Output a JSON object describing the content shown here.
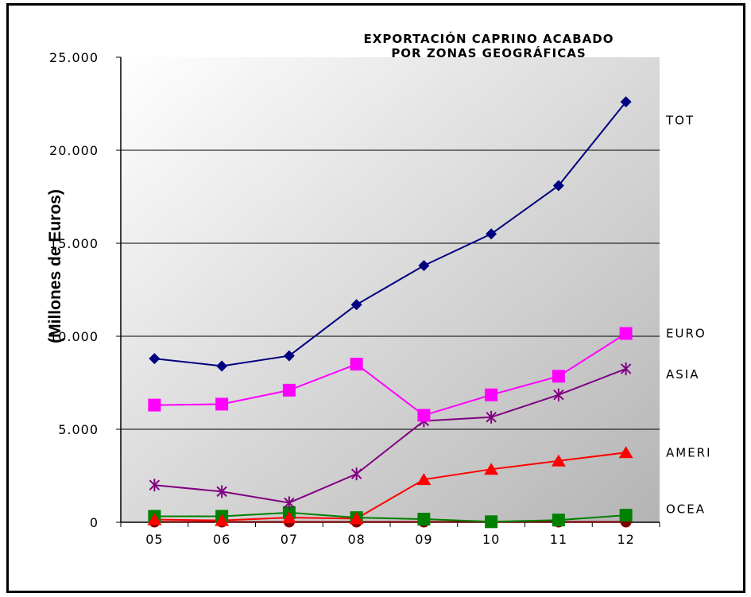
{
  "chart_data": {
    "type": "line",
    "title_line1": "EXPORTACIÓN CAPRINO ACABADO",
    "title_line2": "POR ZONAS GEOGRÁFICAS",
    "ylabel": "(Millones de Euros)",
    "xlabel": "",
    "categories": [
      "05",
      "06",
      "07",
      "08",
      "09",
      "10",
      "11",
      "12"
    ],
    "ylim": [
      0,
      25000
    ],
    "yticks": [
      {
        "value": 0,
        "label": "0"
      },
      {
        "value": 5000,
        "label": "5.000"
      },
      {
        "value": 10000,
        "label": "10.000"
      },
      {
        "value": 15000,
        "label": "15.000"
      },
      {
        "value": 20000,
        "label": "20.000"
      },
      {
        "value": 25000,
        "label": "25.000"
      }
    ],
    "grid": true,
    "series": [
      {
        "name": "TOT",
        "color": "#000080",
        "marker": "diamond",
        "values": [
          8800,
          8400,
          8950,
          11700,
          13800,
          15500,
          18100,
          22600
        ]
      },
      {
        "name": "EURO",
        "color": "#FF00FF",
        "marker": "square",
        "values": [
          6300,
          6350,
          7100,
          8500,
          5750,
          6850,
          7850,
          10150
        ]
      },
      {
        "name": "ASIA",
        "color": "#800080",
        "marker": "star",
        "values": [
          2000,
          1650,
          1050,
          2600,
          5450,
          5650,
          6850,
          8250
        ]
      },
      {
        "name": "AMERI",
        "color": "#FF0000",
        "marker": "triangle",
        "values": [
          150,
          100,
          250,
          200,
          2300,
          2850,
          3300,
          3750
        ]
      },
      {
        "name": "OCEA",
        "color": "#008000",
        "marker": "square",
        "values": [
          320,
          320,
          520,
          250,
          170,
          30,
          120,
          380
        ]
      },
      {
        "name": "",
        "color": "#800000",
        "marker": "circle",
        "values": [
          20,
          20,
          20,
          20,
          20,
          20,
          20,
          20
        ]
      }
    ]
  }
}
